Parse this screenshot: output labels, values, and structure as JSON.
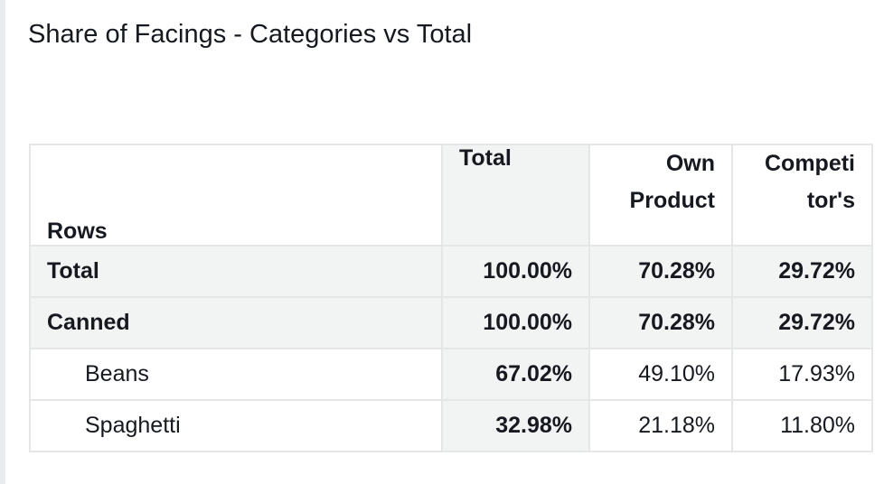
{
  "title": "Share of Facings - Categories vs Total",
  "chart_data": {
    "type": "table",
    "title": "Share of Facings - Categories vs Total",
    "row_header": "Rows",
    "columns": [
      "Total",
      "Own Product",
      "Competitor's"
    ],
    "column_display": [
      "Total",
      "Own\nProduct",
      "Competi\ntor's"
    ],
    "rows": [
      {
        "label": "Total",
        "level": 0,
        "values": [
          "100.00%",
          "70.28%",
          "29.72%"
        ]
      },
      {
        "label": "Canned",
        "level": 0,
        "values": [
          "100.00%",
          "70.28%",
          "29.72%"
        ]
      },
      {
        "label": "Beans",
        "level": 1,
        "values": [
          "67.02%",
          "49.10%",
          "17.93%"
        ]
      },
      {
        "label": "Spaghetti",
        "level": 1,
        "values": [
          "32.98%",
          "21.18%",
          "11.80%"
        ]
      }
    ]
  },
  "colors": {
    "header_bg": "#f2f3f3",
    "border": "#e4e6e8",
    "text": "#16191f",
    "panel_edge": "#e9ebed"
  }
}
